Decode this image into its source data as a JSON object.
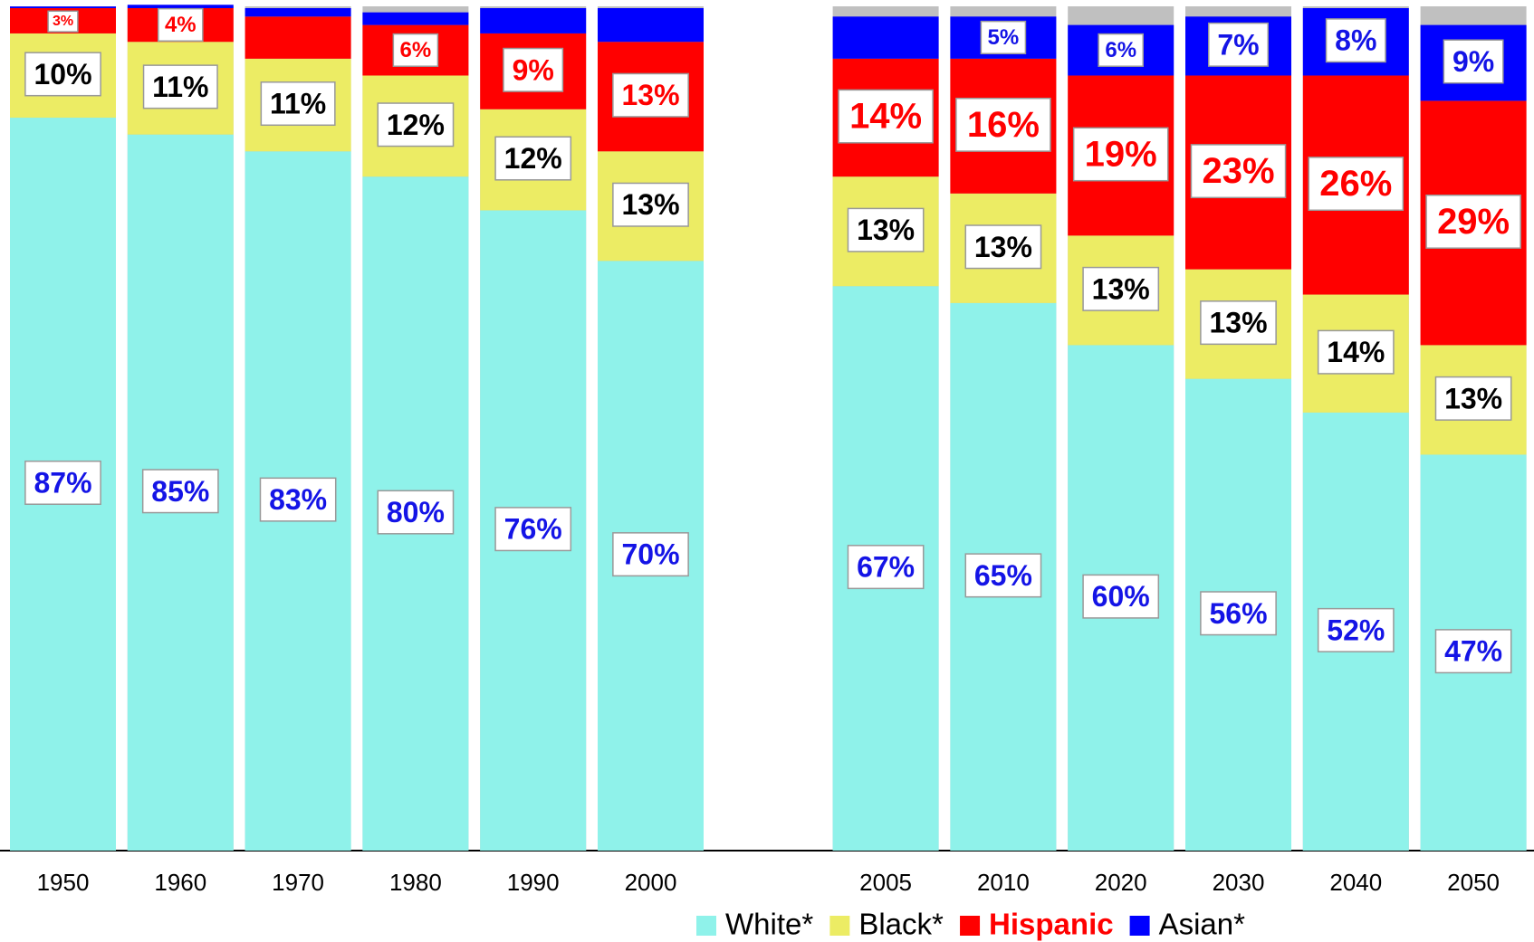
{
  "chart_data": {
    "type": "stacked-bar",
    "categories": [
      "1950",
      "1960",
      "1970",
      "1980",
      "1990",
      "2000",
      "2005",
      "2010",
      "2020",
      "2030",
      "2040",
      "2050"
    ],
    "ylim": [
      0,
      100
    ],
    "series": [
      {
        "name": "White*",
        "color": "#8ff2ea",
        "label_color": "#1414e6",
        "values": [
          87,
          85,
          83,
          80,
          76,
          70,
          67,
          65,
          60,
          56,
          52,
          47
        ],
        "value_labels": [
          "87%",
          "85%",
          "83%",
          "80%",
          "76%",
          "70%",
          "67%",
          "65%",
          "60%",
          "56%",
          "52%",
          "47%"
        ]
      },
      {
        "name": "Black*",
        "color": "#ecec64",
        "label_color": "#000000",
        "values": [
          10,
          11,
          11,
          12,
          12,
          13,
          13,
          13,
          13,
          13,
          14,
          13
        ],
        "value_labels": [
          "10%",
          "11%",
          "11%",
          "12%",
          "12%",
          "13%",
          "13%",
          "13%",
          "13%",
          "13%",
          "14%",
          "13%"
        ]
      },
      {
        "name": "Hispanic",
        "color": "#ff0000",
        "label_color": "#ff0000",
        "values": [
          3,
          4,
          5,
          6,
          9,
          13,
          14,
          16,
          19,
          23,
          26,
          29
        ],
        "value_labels": [
          "3%",
          "4%",
          null,
          "6%",
          "9%",
          "13%",
          "14%",
          "16%",
          "19%",
          "23%",
          "26%",
          "29%"
        ]
      },
      {
        "name": "Asian*",
        "color": "#0000ff",
        "label_color": "#1414e6",
        "values": [
          0.2,
          0.4,
          1,
          1.5,
          3,
          4,
          5,
          5,
          6,
          7,
          8,
          9
        ],
        "value_labels": [
          null,
          null,
          null,
          null,
          null,
          null,
          null,
          "5%",
          "6%",
          "7%",
          "8%",
          "9%"
        ]
      }
    ]
  }
}
